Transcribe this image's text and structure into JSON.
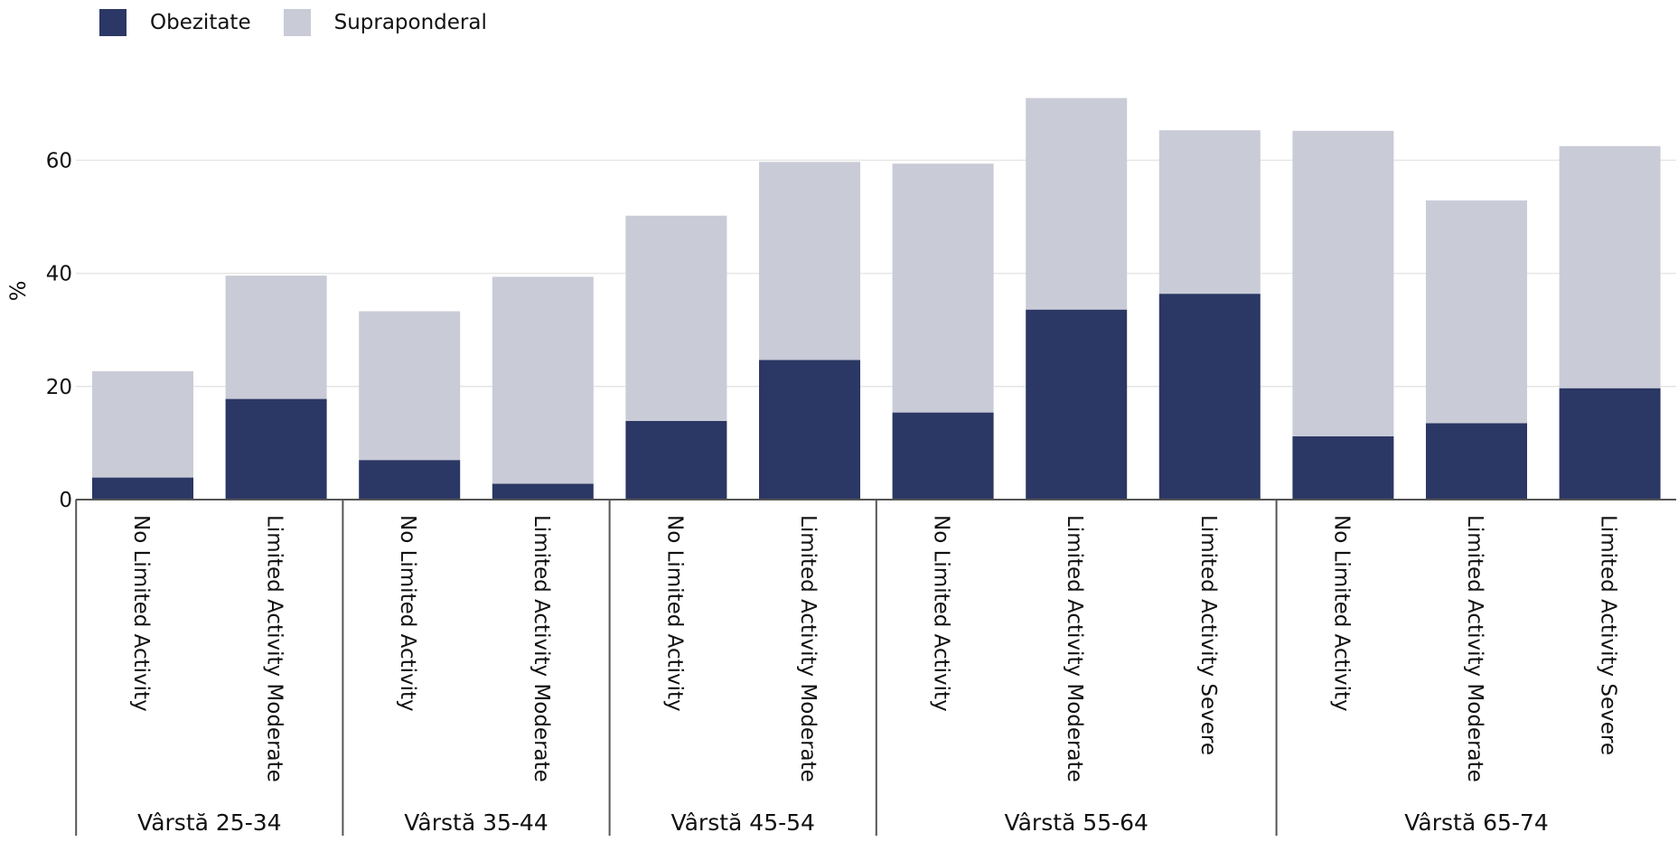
{
  "chart_data": {
    "type": "bar",
    "stacked": true,
    "ylabel": "%",
    "xlabel": "",
    "ylim": [
      0,
      72
    ],
    "yticks": [
      0,
      20,
      40,
      60
    ],
    "grid": true,
    "legend_position": "top-left",
    "groups": [
      {
        "label": "Vârstă 25-34",
        "categories": [
          "No Limited Activity",
          "Limited Activity Moderate"
        ]
      },
      {
        "label": "Vârstă 35-44",
        "categories": [
          "No Limited Activity",
          "Limited Activity Moderate"
        ]
      },
      {
        "label": "Vârstă 45-54",
        "categories": [
          "No Limited Activity",
          "Limited Activity Moderate"
        ]
      },
      {
        "label": "Vârstă 55-64",
        "categories": [
          "No Limited Activity",
          "Limited Activity Moderate",
          "Limited Activity Severe"
        ]
      },
      {
        "label": "Vârstă 65-74",
        "categories": [
          "No Limited Activity",
          "Limited Activity Moderate",
          "Limited Activity Severe"
        ]
      }
    ],
    "series": [
      {
        "name": "Obezitate",
        "color": "#2b3764",
        "values": [
          3.9,
          17.8,
          7.0,
          2.8,
          13.9,
          24.7,
          15.4,
          33.6,
          36.4,
          11.2,
          13.5,
          19.7
        ]
      },
      {
        "name": "Supraponderal",
        "color": "#c9cbd7",
        "values": [
          18.8,
          21.8,
          26.3,
          36.6,
          36.3,
          35.0,
          44.0,
          37.4,
          28.9,
          54.0,
          39.4,
          42.8
        ]
      }
    ]
  }
}
